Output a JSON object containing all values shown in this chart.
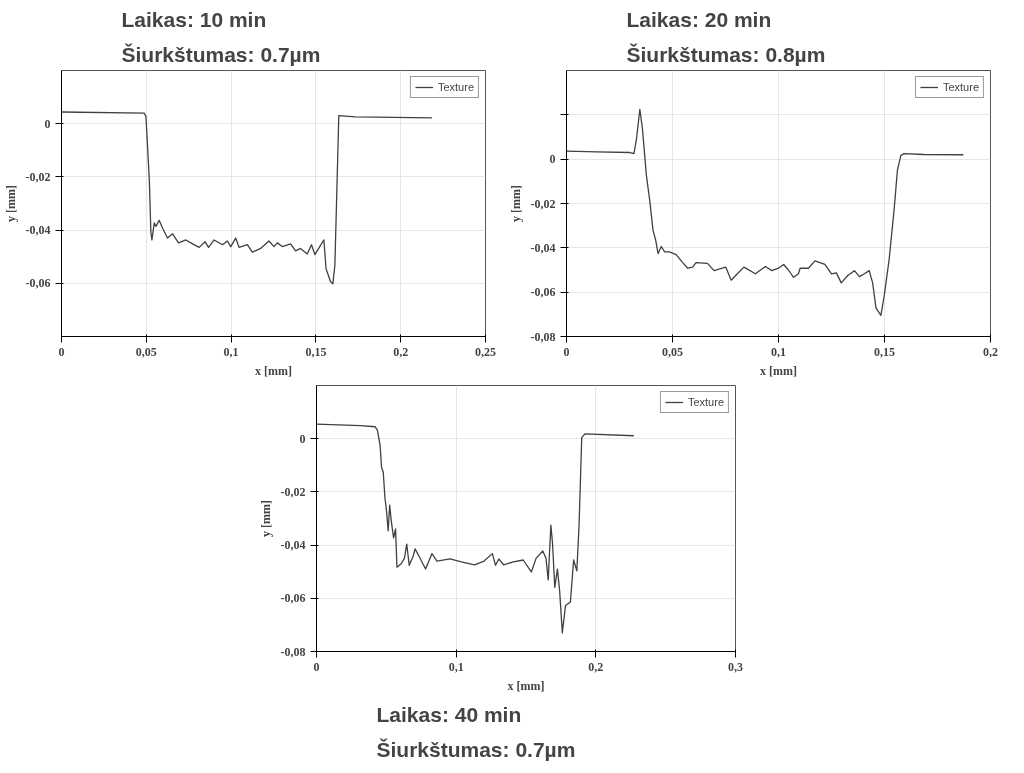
{
  "chart_data": [
    {
      "type": "line",
      "title": "Laikas: 10 min",
      "subtitle": "Šiurkštumas: 0.7µm",
      "xlabel": "x [mm]",
      "ylabel": "y [mm]",
      "xlim": [
        0,
        0.25
      ],
      "ylim": [
        -0.08,
        0.02
      ],
      "xticks": [
        0,
        {
          "value": 0.05,
          "label": "0,05"
        },
        {
          "value": 0.1,
          "label": "0,1"
        },
        {
          "value": 0.15,
          "label": "0,15"
        },
        {
          "value": 0.2,
          "label": "0,2"
        },
        {
          "value": 0.25,
          "label": "0,25"
        }
      ],
      "yticks": [
        0,
        {
          "value": -0.02,
          "label": "-0,02"
        },
        {
          "value": -0.04,
          "label": "-0,04"
        },
        {
          "value": -0.06,
          "label": "-0,06"
        }
      ],
      "grid": true,
      "legend": "top right",
      "series": [
        {
          "name": "Texture",
          "color": "#404040",
          "x": [
            0,
            0.0488,
            0.0498,
            0.0518,
            0.0527,
            0.0533,
            0.0547,
            0.0557,
            0.0576,
            0.0596,
            0.0625,
            0.0655,
            0.069,
            0.0733,
            0.0773,
            0.0812,
            0.0847,
            0.0867,
            0.09,
            0.0949,
            0.0978,
            0.0998,
            0.1027,
            0.1047,
            0.1096,
            0.1125,
            0.1174,
            0.1223,
            0.1253,
            0.1272,
            0.1302,
            0.1351,
            0.138,
            0.1409,
            0.1449,
            0.1474,
            0.1494,
            0.1547,
            0.156,
            0.1586,
            0.16,
            0.1612,
            0.1621,
            0.1635,
            0.1733,
            0.2184
          ],
          "values": [
            0.0044,
            0.004,
            0.0026,
            -0.0215,
            -0.0407,
            -0.0437,
            -0.0373,
            -0.0386,
            -0.0363,
            -0.0393,
            -0.043,
            -0.0414,
            -0.0448,
            -0.0437,
            -0.0452,
            -0.0465,
            -0.0444,
            -0.0465,
            -0.0437,
            -0.0455,
            -0.0441,
            -0.0462,
            -0.043,
            -0.0465,
            -0.0455,
            -0.0483,
            -0.0469,
            -0.0441,
            -0.0462,
            -0.0448,
            -0.0462,
            -0.0452,
            -0.0478,
            -0.0469,
            -0.049,
            -0.0455,
            -0.0492,
            -0.0437,
            -0.0545,
            -0.0593,
            -0.0602,
            -0.0531,
            -0.0311,
            0.003,
            0.0026,
            0.0022
          ]
        }
      ]
    },
    {
      "type": "line",
      "title": "Laikas: 20 min",
      "subtitle": "Šiurkštumas: 0.8µm",
      "xlabel": "x [mm]",
      "ylabel": "y [mm]",
      "xlim": [
        0,
        0.2
      ],
      "ylim": [
        -0.08,
        0.04
      ],
      "xticks": [
        0,
        {
          "value": 0.05,
          "label": "0,05"
        },
        {
          "value": 0.1,
          "label": "0,1"
        },
        {
          "value": 0.15,
          "label": "0,15"
        },
        {
          "value": 0.2,
          "label": "0,2"
        }
      ],
      "yticks": [
        {
          "value": 0.02,
          "label": null
        },
        0,
        {
          "value": -0.02,
          "label": "-0,02"
        },
        {
          "value": -0.04,
          "label": "-0,04"
        },
        {
          "value": -0.06,
          "label": "-0,06"
        },
        {
          "value": -0.08,
          "label": "-0,08"
        }
      ],
      "grid": true,
      "legend": "top right",
      "series": [
        {
          "name": "Texture",
          "color": "#404040",
          "x": [
            0,
            0.0143,
            0.0299,
            0.0318,
            0.033,
            0.0346,
            0.0358,
            0.0377,
            0.0393,
            0.0408,
            0.0421,
            0.0432,
            0.0447,
            0.0463,
            0.0486,
            0.0517,
            0.0548,
            0.0572,
            0.0595,
            0.0611,
            0.0665,
            0.0696,
            0.0751,
            0.0777,
            0.0798,
            0.0837,
            0.0891,
            0.0938,
            0.0969,
            0.1,
            0.1024,
            0.1047,
            0.1071,
            0.1094,
            0.1102,
            0.1141,
            0.1172,
            0.1219,
            0.125,
            0.1273,
            0.1296,
            0.1327,
            0.1358,
            0.1382,
            0.1405,
            0.1428,
            0.1444,
            0.146,
            0.1483,
            0.1499,
            0.1522,
            0.1546,
            0.1561,
            0.1577,
            0.1592,
            0.1686,
            0.1872
          ],
          "values": [
            0.0036,
            0.0033,
            0.003,
            0.0025,
            0.009,
            0.0225,
            0.0139,
            -0.0074,
            -0.0189,
            -0.032,
            -0.0367,
            -0.0426,
            -0.0394,
            -0.0418,
            -0.0418,
            -0.0431,
            -0.0467,
            -0.0492,
            -0.0487,
            -0.0467,
            -0.047,
            -0.0503,
            -0.0487,
            -0.0546,
            -0.0525,
            -0.0487,
            -0.0517,
            -0.0484,
            -0.0503,
            -0.0492,
            -0.0475,
            -0.05,
            -0.0533,
            -0.0517,
            -0.0492,
            -0.0492,
            -0.0459,
            -0.0475,
            -0.0517,
            -0.0513,
            -0.0558,
            -0.0525,
            -0.0503,
            -0.053,
            -0.0517,
            -0.0503,
            -0.0558,
            -0.0672,
            -0.0705,
            -0.0615,
            -0.0451,
            -0.0221,
            -0.0049,
            0.0016,
            0.0025,
            0.0021,
            0.002
          ]
        }
      ]
    },
    {
      "type": "line",
      "title": "Laikas: 40 min",
      "subtitle": "Šiurkštumas: 0.7µm",
      "xlabel": "x [mm]",
      "ylabel": "y [mm]",
      "xlim": [
        0,
        0.3
      ],
      "ylim": [
        -0.08,
        0.02
      ],
      "xticks": [
        0,
        {
          "value": 0.1,
          "label": "0,1"
        },
        {
          "value": 0.2,
          "label": "0,2"
        },
        {
          "value": 0.3,
          "label": "0,3"
        }
      ],
      "yticks": [
        0,
        {
          "value": -0.02,
          "label": "-0,02"
        },
        {
          "value": -0.04,
          "label": "-0,04"
        },
        {
          "value": -0.06,
          "label": "-0,06"
        },
        {
          "value": -0.08,
          "label": "-0,08"
        }
      ],
      "grid": true,
      "legend": "top right",
      "series": [
        {
          "name": "Texture",
          "color": "#404040",
          "x": [
            0,
            0.0315,
            0.0419,
            0.0436,
            0.0455,
            0.0466,
            0.0478,
            0.049,
            0.0501,
            0.0513,
            0.0524,
            0.0536,
            0.0552,
            0.0566,
            0.0576,
            0.0606,
            0.063,
            0.0646,
            0.0664,
            0.0692,
            0.0706,
            0.0734,
            0.0781,
            0.0827,
            0.0862,
            0.0956,
            0.1037,
            0.1131,
            0.12,
            0.1259,
            0.1282,
            0.1305,
            0.134,
            0.141,
            0.148,
            0.1538,
            0.1573,
            0.162,
            0.1643,
            0.1659,
            0.1678,
            0.169,
            0.1706,
            0.1725,
            0.1741,
            0.176,
            0.1783,
            0.1818,
            0.1841,
            0.1864,
            0.188,
            0.1899,
            0.1922,
            0.2272
          ],
          "values": [
            0.0055,
            0.0049,
            0.0045,
            0.0032,
            -0.0023,
            -0.0108,
            -0.0126,
            -0.0222,
            -0.027,
            -0.0346,
            -0.025,
            -0.0312,
            -0.0373,
            -0.0339,
            -0.0483,
            -0.047,
            -0.0449,
            -0.0396,
            -0.0476,
            -0.0442,
            -0.0414,
            -0.0442,
            -0.049,
            -0.0432,
            -0.046,
            -0.0452,
            -0.0463,
            -0.0474,
            -0.046,
            -0.0432,
            -0.0476,
            -0.0452,
            -0.0474,
            -0.0463,
            -0.0456,
            -0.0501,
            -0.0449,
            -0.0422,
            -0.0449,
            -0.0531,
            -0.0325,
            -0.0394,
            -0.0559,
            -0.049,
            -0.0573,
            -0.073,
            -0.0627,
            -0.0614,
            -0.0456,
            -0.0497,
            -0.0325,
            0.0004,
            0.0018,
            0.0011
          ]
        }
      ]
    }
  ]
}
